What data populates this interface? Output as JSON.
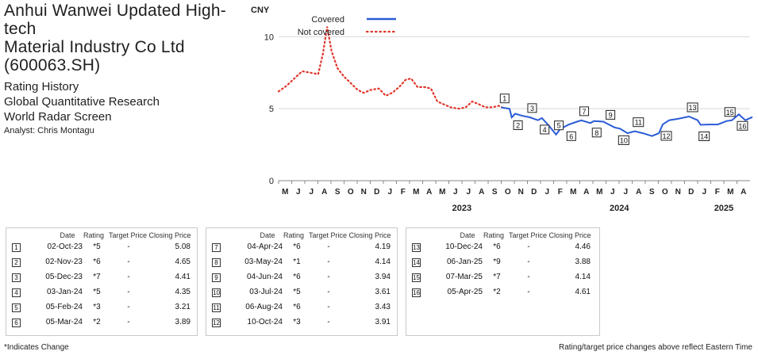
{
  "header": {
    "company": [
      "Anhui Wanwei Updated High-tech",
      "Material Industry Co Ltd",
      "(600063.SH)"
    ],
    "subtitle": [
      "Rating History",
      "Global Quantitative Research",
      "World Radar Screen"
    ],
    "analyst": "Analyst: Chris Montagu"
  },
  "chart_data": {
    "type": "line",
    "y_unit_label": "CNY",
    "ylim": [
      0,
      12
    ],
    "y_ticks": [
      0,
      5,
      10
    ],
    "x_month_labels": [
      "M",
      "J",
      "J",
      "A",
      "S",
      "O",
      "N",
      "D",
      "J",
      "F",
      "M",
      "A",
      "M",
      "J",
      "J",
      "A",
      "S",
      "O",
      "N",
      "D",
      "J",
      "F",
      "M",
      "A",
      "M",
      "J",
      "J",
      "A",
      "S",
      "O",
      "N",
      "D",
      "J",
      "F",
      "M",
      "A"
    ],
    "x_year_labels": [
      "2023",
      "2024",
      "2025"
    ],
    "legend": [
      {
        "name": "Covered",
        "color": "#2a5bd7",
        "style": "solid"
      },
      {
        "name": "Not covered",
        "color": "#e0352b",
        "style": "dotted"
      }
    ],
    "series": [
      {
        "name": "Not covered",
        "x": [
          "2022-05-01",
          "2022-05-20",
          "2022-06-10",
          "2022-06-25",
          "2022-07-15",
          "2022-08-01",
          "2022-08-12",
          "2022-08-22",
          "2022-09-01",
          "2022-09-15",
          "2022-10-01",
          "2022-10-15",
          "2022-11-01",
          "2022-11-15",
          "2022-12-01",
          "2022-12-20",
          "2023-01-05",
          "2023-01-20",
          "2023-02-05",
          "2023-02-20",
          "2023-03-05",
          "2023-03-20",
          "2023-04-05",
          "2023-04-20",
          "2023-05-05",
          "2023-05-20",
          "2023-06-05",
          "2023-06-25",
          "2023-07-10",
          "2023-07-25",
          "2023-08-10",
          "2023-08-25",
          "2023-09-10",
          "2023-09-25",
          "2023-10-02"
        ],
        "y": [
          6.2,
          6.6,
          7.2,
          7.6,
          7.5,
          7.4,
          8.8,
          10.7,
          9.0,
          7.8,
          7.2,
          6.8,
          6.3,
          6.1,
          6.3,
          6.4,
          5.9,
          6.1,
          6.5,
          7.0,
          7.1,
          6.5,
          6.5,
          6.4,
          5.5,
          5.3,
          5.1,
          5.0,
          5.1,
          5.5,
          5.3,
          5.1,
          5.1,
          5.2,
          5.1
        ]
      },
      {
        "name": "Covered",
        "x": [
          "2023-10-02",
          "2023-10-20",
          "2023-10-25",
          "2023-11-02",
          "2023-11-20",
          "2023-12-05",
          "2023-12-25",
          "2024-01-03",
          "2024-01-20",
          "2024-02-05",
          "2024-02-15",
          "2024-03-05",
          "2024-03-25",
          "2024-04-04",
          "2024-04-25",
          "2024-05-03",
          "2024-05-25",
          "2024-06-04",
          "2024-06-20",
          "2024-07-03",
          "2024-07-20",
          "2024-08-06",
          "2024-08-25",
          "2024-09-15",
          "2024-10-01",
          "2024-10-10",
          "2024-10-25",
          "2024-11-15",
          "2024-12-10",
          "2024-12-30",
          "2025-01-06",
          "2025-01-25",
          "2025-02-15",
          "2025-03-07",
          "2025-03-20",
          "2025-04-05",
          "2025-04-20",
          "2025-05-05"
        ],
        "y": [
          5.08,
          5.0,
          4.4,
          4.65,
          4.5,
          4.41,
          4.2,
          4.35,
          3.8,
          3.21,
          3.6,
          3.89,
          4.1,
          4.19,
          4.0,
          4.14,
          4.1,
          3.94,
          3.7,
          3.61,
          3.3,
          3.43,
          3.3,
          3.1,
          3.3,
          3.91,
          4.2,
          4.3,
          4.46,
          4.2,
          3.88,
          3.9,
          3.9,
          4.14,
          4.2,
          4.61,
          4.2,
          4.4
        ]
      }
    ],
    "markers": [
      {
        "n": "1",
        "date": "2023-10-02",
        "value": 5.08
      },
      {
        "n": "2",
        "date": "2023-11-02",
        "value": 4.65
      },
      {
        "n": "3",
        "date": "2023-12-05",
        "value": 4.41
      },
      {
        "n": "4",
        "date": "2024-01-03",
        "value": 4.35
      },
      {
        "n": "5",
        "date": "2024-02-05",
        "value": 3.21
      },
      {
        "n": "6",
        "date": "2024-03-05",
        "value": 3.89
      },
      {
        "n": "7",
        "date": "2024-04-04",
        "value": 4.19
      },
      {
        "n": "8",
        "date": "2024-05-03",
        "value": 4.14
      },
      {
        "n": "9",
        "date": "2024-06-04",
        "value": 3.94
      },
      {
        "n": "10",
        "date": "2024-07-03",
        "value": 3.61
      },
      {
        "n": "11",
        "date": "2024-08-06",
        "value": 3.43
      },
      {
        "n": "12",
        "date": "2024-10-10",
        "value": 3.91
      },
      {
        "n": "13",
        "date": "2024-12-10",
        "value": 4.46
      },
      {
        "n": "14",
        "date": "2025-01-06",
        "value": 3.88
      },
      {
        "n": "15",
        "date": "2025-03-07",
        "value": 4.14
      },
      {
        "n": "16",
        "date": "2025-04-05",
        "value": 4.61
      }
    ]
  },
  "table": {
    "headers": {
      "date": "Date",
      "rating": "Rating",
      "target": "Target Price",
      "close": "Closing Price"
    },
    "rows": [
      {
        "n": "1",
        "date": "02-Oct-23",
        "rating": "*5",
        "target": "-",
        "close": "5.08"
      },
      {
        "n": "2",
        "date": "02-Nov-23",
        "rating": "*6",
        "target": "-",
        "close": "4.65"
      },
      {
        "n": "3",
        "date": "05-Dec-23",
        "rating": "*7",
        "target": "-",
        "close": "4.41"
      },
      {
        "n": "4",
        "date": "03-Jan-24",
        "rating": "*5",
        "target": "-",
        "close": "4.35"
      },
      {
        "n": "5",
        "date": "05-Feb-24",
        "rating": "*3",
        "target": "-",
        "close": "3.21"
      },
      {
        "n": "6",
        "date": "05-Mar-24",
        "rating": "*2",
        "target": "-",
        "close": "3.89"
      },
      {
        "n": "7",
        "date": "04-Apr-24",
        "rating": "*6",
        "target": "-",
        "close": "4.19"
      },
      {
        "n": "8",
        "date": "03-May-24",
        "rating": "*1",
        "target": "-",
        "close": "4.14"
      },
      {
        "n": "9",
        "date": "04-Jun-24",
        "rating": "*6",
        "target": "-",
        "close": "3.94"
      },
      {
        "n": "10",
        "date": "03-Jul-24",
        "rating": "*5",
        "target": "-",
        "close": "3.61"
      },
      {
        "n": "11",
        "date": "06-Aug-24",
        "rating": "*6",
        "target": "-",
        "close": "3.43"
      },
      {
        "n": "12",
        "date": "10-Oct-24",
        "rating": "*3",
        "target": "-",
        "close": "3.91"
      },
      {
        "n": "13",
        "date": "10-Dec-24",
        "rating": "*6",
        "target": "-",
        "close": "4.46"
      },
      {
        "n": "14",
        "date": "06-Jan-25",
        "rating": "*9",
        "target": "-",
        "close": "3.88"
      },
      {
        "n": "15",
        "date": "07-Mar-25",
        "rating": "*7",
        "target": "-",
        "close": "4.14"
      },
      {
        "n": "16",
        "date": "05-Apr-25",
        "rating": "*2",
        "target": "-",
        "close": "4.61"
      }
    ]
  },
  "footer": {
    "left": "*Indicates Change",
    "right": "Rating/target price changes above reflect Eastern Time"
  }
}
